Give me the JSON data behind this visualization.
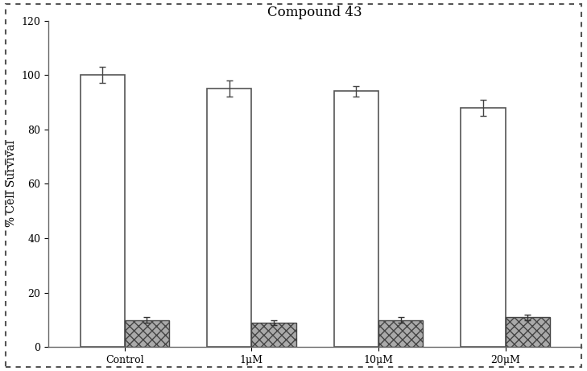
{
  "title": "Compound 43",
  "ylabel": "% Cell Survival",
  "xlabel": "",
  "categories": [
    "Control",
    "1μM",
    "10μM",
    "20μM"
  ],
  "bar1_values": [
    100,
    95,
    94,
    88
  ],
  "bar2_values": [
    10,
    9,
    10,
    11
  ],
  "bar1_errors": [
    3,
    3,
    2,
    3
  ],
  "bar2_errors": [
    1,
    1,
    1,
    1
  ],
  "ylim": [
    0,
    120
  ],
  "yticks": [
    0,
    20,
    40,
    60,
    80,
    100,
    120
  ],
  "bar_width": 0.35,
  "bar1_color": "white",
  "bar1_edgecolor": "#555555",
  "bar2_color": "#aaaaaa",
  "bar2_edgecolor": "#444444",
  "bar2_hatch": "xxx",
  "title_fontsize": 12,
  "axis_fontsize": 10,
  "tick_fontsize": 9,
  "background_color": "#ffffff",
  "figure_facecolor": "#ffffff",
  "border_color": "#666666"
}
